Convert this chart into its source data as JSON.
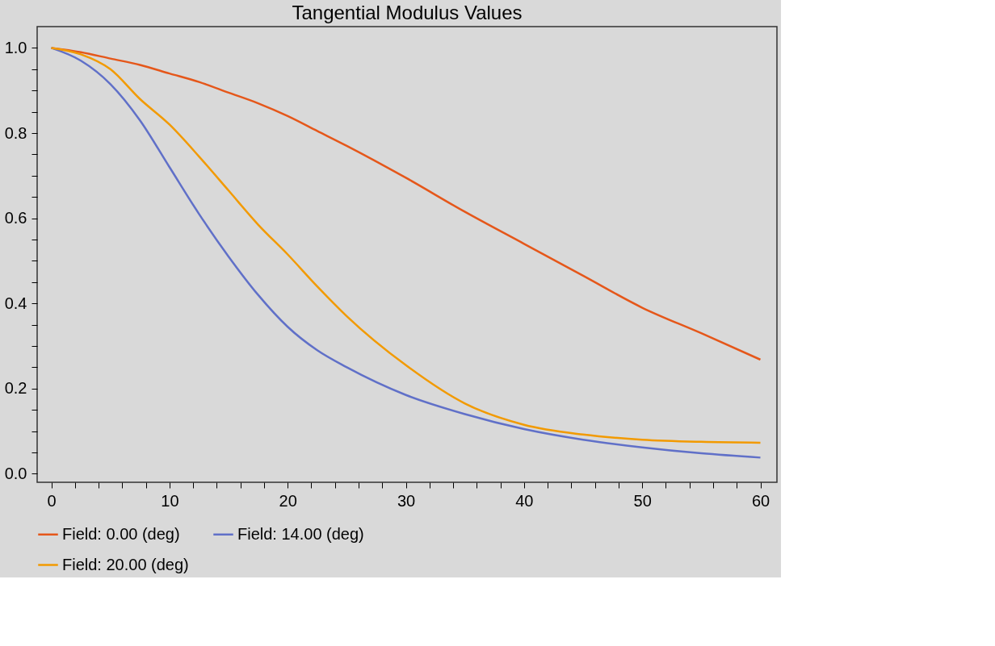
{
  "chart_data": {
    "type": "line",
    "title": "Tangential Modulus Values",
    "x": [
      0,
      2.5,
      5,
      7.5,
      10,
      12.5,
      15,
      17.5,
      20,
      22.5,
      25,
      30,
      35,
      40,
      45,
      50,
      55,
      60
    ],
    "series": [
      {
        "name": "Field: 0.00 (deg)",
        "color": "#e5571a",
        "values": [
          1.0,
          0.99,
          0.975,
          0.96,
          0.94,
          0.92,
          0.895,
          0.87,
          0.84,
          0.805,
          0.77,
          0.695,
          0.615,
          0.54,
          0.465,
          0.39,
          0.33,
          0.268
        ]
      },
      {
        "name": "Field: 14.00 (deg)",
        "color": "#6070c8",
        "values": [
          1.0,
          0.97,
          0.915,
          0.83,
          0.72,
          0.61,
          0.51,
          0.42,
          0.345,
          0.29,
          0.25,
          0.185,
          0.14,
          0.105,
          0.08,
          0.062,
          0.048,
          0.038
        ]
      },
      {
        "name": "Field: 20.00 (deg)",
        "color": "#f29a00",
        "values": [
          1.0,
          0.985,
          0.95,
          0.88,
          0.82,
          0.745,
          0.665,
          0.585,
          0.515,
          0.44,
          0.37,
          0.255,
          0.165,
          0.115,
          0.092,
          0.08,
          0.075,
          0.073
        ]
      }
    ],
    "xlim": [
      -1.2,
      61.4
    ],
    "ylim": [
      -0.02,
      1.05
    ],
    "xticks": [
      0,
      {
        "value": 2,
        "label": null
      },
      {
        "value": 4,
        "label": null
      },
      {
        "value": 6,
        "label": null
      },
      {
        "value": 8,
        "label": null
      },
      10,
      {
        "value": 12,
        "label": null
      },
      {
        "value": 14,
        "label": null
      },
      {
        "value": 16,
        "label": null
      },
      {
        "value": 18,
        "label": null
      },
      20,
      {
        "value": 22,
        "label": null
      },
      {
        "value": 24,
        "label": null
      },
      {
        "value": 26,
        "label": null
      },
      {
        "value": 28,
        "label": null
      },
      30,
      {
        "value": 32,
        "label": null
      },
      {
        "value": 34,
        "label": null
      },
      {
        "value": 36,
        "label": null
      },
      {
        "value": 38,
        "label": null
      },
      40,
      {
        "value": 42,
        "label": null
      },
      {
        "value": 44,
        "label": null
      },
      {
        "value": 46,
        "label": null
      },
      {
        "value": 48,
        "label": null
      },
      50,
      {
        "value": 52,
        "label": null
      },
      {
        "value": 54,
        "label": null
      },
      {
        "value": 56,
        "label": null
      },
      {
        "value": 58,
        "label": null
      },
      60
    ],
    "yticks": [
      {
        "value": 0,
        "label": "0.0"
      },
      {
        "value": 0.05,
        "label": null
      },
      {
        "value": 0.1,
        "label": null
      },
      {
        "value": 0.15,
        "label": null
      },
      {
        "value": 0.2,
        "label": "0.2"
      },
      {
        "value": 0.25,
        "label": null
      },
      {
        "value": 0.3,
        "label": null
      },
      {
        "value": 0.35,
        "label": null
      },
      {
        "value": 0.4,
        "label": "0.4"
      },
      {
        "value": 0.45,
        "label": null
      },
      {
        "value": 0.5,
        "label": null
      },
      {
        "value": 0.55,
        "label": null
      },
      {
        "value": 0.6,
        "label": "0.6"
      },
      {
        "value": 0.65,
        "label": null
      },
      {
        "value": 0.7,
        "label": null
      },
      {
        "value": 0.75,
        "label": null
      },
      {
        "value": 0.8,
        "label": "0.8"
      },
      {
        "value": 0.85,
        "label": null
      },
      {
        "value": 0.9,
        "label": null
      },
      {
        "value": 0.95,
        "label": null
      },
      {
        "value": 1.0,
        "label": "1.0"
      }
    ],
    "grid": false,
    "legend": "bottom",
    "marker": "none",
    "line_style": "solid"
  }
}
